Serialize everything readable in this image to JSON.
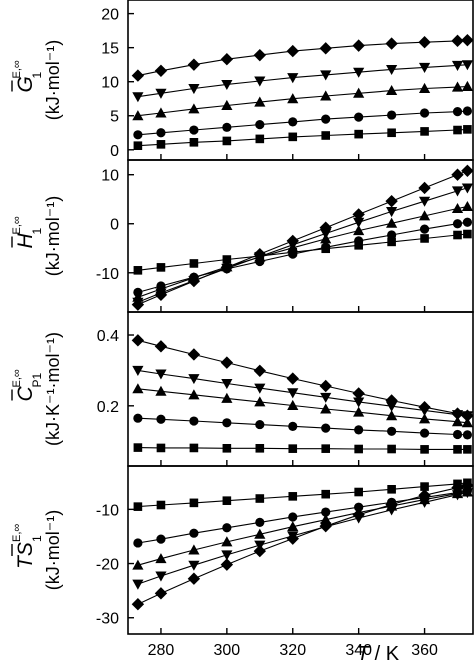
{
  "chart_data": [
    {
      "type": "line",
      "ylabel": {
        "symbol": "G",
        "sup": "E,∞",
        "sub": "1",
        "unit": "(kJ·mol⁻¹)"
      },
      "xlim": [
        270,
        375
      ],
      "ylim": [
        -1.5,
        22
      ],
      "yticks": [
        0,
        5,
        10,
        15,
        20
      ],
      "grid": false,
      "x": [
        273,
        280,
        290,
        300,
        310,
        320,
        330,
        340,
        350,
        360,
        370,
        373
      ],
      "series": [
        {
          "marker": "diamond",
          "values": [
            10.9,
            11.6,
            12.5,
            13.3,
            13.9,
            14.5,
            14.9,
            15.3,
            15.6,
            15.8,
            16.0,
            16.1
          ]
        },
        {
          "marker": "triangle-down",
          "values": [
            7.8,
            8.3,
            9.0,
            9.6,
            10.1,
            10.6,
            11.0,
            11.4,
            11.8,
            12.1,
            12.4,
            12.5
          ]
        },
        {
          "marker": "triangle-up",
          "values": [
            5.0,
            5.4,
            6.0,
            6.5,
            7.0,
            7.5,
            7.9,
            8.3,
            8.7,
            9.0,
            9.2,
            9.3
          ]
        },
        {
          "marker": "circle",
          "values": [
            2.2,
            2.5,
            2.9,
            3.3,
            3.7,
            4.1,
            4.5,
            4.8,
            5.1,
            5.4,
            5.6,
            5.7
          ]
        },
        {
          "marker": "square",
          "values": [
            0.6,
            0.8,
            1.1,
            1.3,
            1.6,
            1.9,
            2.1,
            2.3,
            2.5,
            2.7,
            2.9,
            3.0
          ]
        }
      ]
    },
    {
      "type": "line",
      "ylabel": {
        "symbol": "H",
        "sup": "E,∞",
        "sub": "1",
        "unit": "(kJ·mol⁻¹)"
      },
      "xlim": [
        270,
        375
      ],
      "ylim": [
        -18,
        13
      ],
      "yticks": [
        -10,
        0,
        10
      ],
      "grid": false,
      "x": [
        273,
        280,
        290,
        300,
        310,
        320,
        330,
        340,
        350,
        360,
        370,
        373
      ],
      "series": [
        {
          "marker": "diamond",
          "values": [
            -16.5,
            -14.5,
            -11.7,
            -8.9,
            -6.2,
            -3.5,
            -0.8,
            1.9,
            4.6,
            7.3,
            10.0,
            10.8
          ]
        },
        {
          "marker": "triangle-down",
          "values": [
            -16.0,
            -14.1,
            -11.6,
            -9.1,
            -6.7,
            -4.3,
            -2.0,
            0.3,
            2.5,
            4.6,
            6.7,
            7.3
          ]
        },
        {
          "marker": "triangle-up",
          "values": [
            -15.0,
            -13.3,
            -11.0,
            -8.8,
            -6.8,
            -4.9,
            -3.1,
            -1.4,
            0.1,
            1.6,
            3.1,
            3.5
          ]
        },
        {
          "marker": "circle",
          "values": [
            -14.0,
            -12.7,
            -10.9,
            -9.2,
            -7.7,
            -6.2,
            -4.8,
            -3.5,
            -2.3,
            -1.1,
            0.0,
            0.3
          ]
        },
        {
          "marker": "square",
          "values": [
            -9.5,
            -8.9,
            -8.1,
            -7.3,
            -6.6,
            -5.8,
            -5.1,
            -4.4,
            -3.7,
            -3.0,
            -2.3,
            -2.1
          ]
        }
      ]
    },
    {
      "type": "line",
      "ylabel": {
        "symbol": "C",
        "sup": "E,∞",
        "sub": "P1",
        "unit": "(kJ·K⁻¹·mol⁻¹)"
      },
      "xlim": [
        270,
        375
      ],
      "ylim": [
        0.03,
        0.465
      ],
      "yticks": [
        0.2,
        0.4
      ],
      "grid": false,
      "x": [
        273,
        280,
        290,
        300,
        310,
        320,
        330,
        340,
        350,
        360,
        370,
        373
      ],
      "series": [
        {
          "marker": "diamond",
          "values": [
            0.385,
            0.368,
            0.345,
            0.322,
            0.299,
            0.277,
            0.256,
            0.235,
            0.215,
            0.196,
            0.178,
            0.172
          ]
        },
        {
          "marker": "triangle-down",
          "values": [
            0.3,
            0.29,
            0.277,
            0.263,
            0.25,
            0.237,
            0.224,
            0.211,
            0.199,
            0.187,
            0.175,
            0.172
          ]
        },
        {
          "marker": "triangle-up",
          "values": [
            0.248,
            0.241,
            0.231,
            0.221,
            0.211,
            0.201,
            0.191,
            0.182,
            0.172,
            0.163,
            0.155,
            0.152
          ]
        },
        {
          "marker": "circle",
          "values": [
            0.165,
            0.162,
            0.157,
            0.152,
            0.147,
            0.142,
            0.137,
            0.132,
            0.128,
            0.123,
            0.119,
            0.118
          ]
        },
        {
          "marker": "square",
          "values": [
            0.082,
            0.081,
            0.081,
            0.08,
            0.08,
            0.079,
            0.079,
            0.078,
            0.078,
            0.077,
            0.077,
            0.077
          ]
        }
      ]
    },
    {
      "type": "line",
      "ylabel": {
        "symbol": "TS",
        "sup": "E,∞",
        "sub": "1",
        "unit": "(kJ·mol⁻¹)"
      },
      "xlim": [
        270,
        375
      ],
      "ylim": [
        -33,
        -2
      ],
      "yticks": [
        -30,
        -20,
        -10
      ],
      "xticks": [
        280,
        300,
        320,
        340,
        360
      ],
      "xlabel": {
        "italic": "T",
        "rest": " / K"
      },
      "grid": false,
      "x": [
        273,
        280,
        290,
        300,
        310,
        320,
        330,
        340,
        350,
        360,
        370,
        373
      ],
      "series": [
        {
          "marker": "diamond",
          "values": [
            -27.5,
            -25.5,
            -22.8,
            -20.2,
            -17.7,
            -15.4,
            -13.1,
            -11.0,
            -9.1,
            -7.4,
            -6.0,
            -5.6
          ]
        },
        {
          "marker": "triangle-down",
          "values": [
            -23.8,
            -22.3,
            -20.3,
            -18.4,
            -16.6,
            -14.9,
            -13.2,
            -11.6,
            -10.1,
            -8.7,
            -7.3,
            -6.9
          ]
        },
        {
          "marker": "triangle-up",
          "values": [
            -20.3,
            -19.1,
            -17.5,
            -16.0,
            -14.6,
            -13.2,
            -11.9,
            -10.6,
            -9.4,
            -8.2,
            -7.1,
            -6.8
          ]
        },
        {
          "marker": "circle",
          "values": [
            -16.2,
            -15.5,
            -14.4,
            -13.4,
            -12.4,
            -11.4,
            -10.5,
            -9.6,
            -8.7,
            -7.8,
            -6.9,
            -6.6
          ]
        },
        {
          "marker": "square",
          "values": [
            -9.5,
            -9.2,
            -8.8,
            -8.4,
            -8.0,
            -7.6,
            -7.2,
            -6.8,
            -6.3,
            -5.8,
            -5.3,
            -5.1
          ]
        }
      ]
    }
  ]
}
